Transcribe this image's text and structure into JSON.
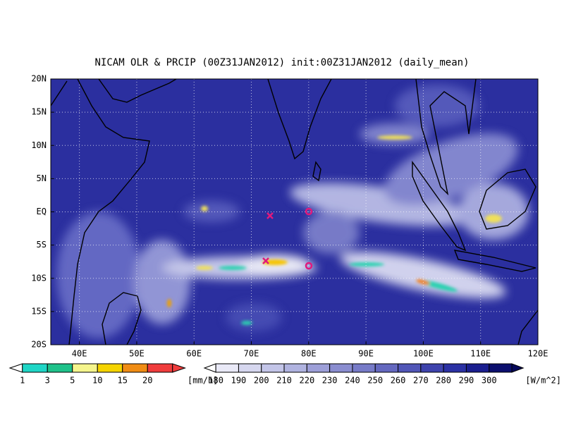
{
  "title": "NICAM OLR & PRCIP (00Z31JAN2012) init:00Z31JAN2012 (daily_mean)",
  "lat_labels": [
    "20N",
    "15N",
    "10N",
    "5N",
    "EQ",
    "5S",
    "10S",
    "15S",
    "20S"
  ],
  "lon_labels": [
    "40E",
    "50E",
    "60E",
    "70E",
    "80E",
    "90E",
    "100E",
    "110E",
    "120E"
  ],
  "precip_legend": {
    "labels": [
      "1",
      "3",
      "5",
      "10",
      "15",
      "20"
    ],
    "unit": "[mm/h]"
  },
  "olr_legend": {
    "labels": [
      "180",
      "190",
      "200",
      "210",
      "220",
      "230",
      "240",
      "250",
      "260",
      "270",
      "280",
      "290",
      "300"
    ],
    "unit": "[W/m^2]"
  }
}
